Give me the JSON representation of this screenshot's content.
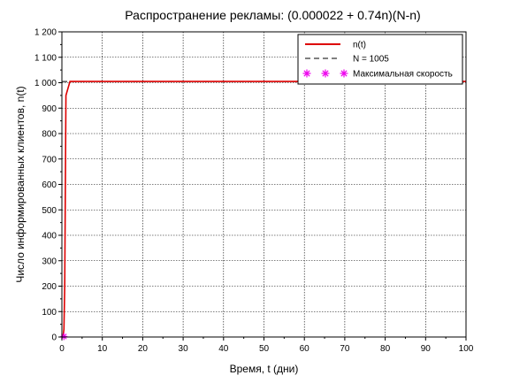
{
  "chart_data": {
    "type": "line",
    "title": "Распространение рекламы: (0.000022 + 0.74n)(N-n)",
    "xlabel": "Время, t (дни)",
    "ylabel": "Число информированных клиентов, n(t)",
    "xlim": [
      0,
      100
    ],
    "ylim": [
      0,
      1200
    ],
    "x_ticks": [
      0,
      10,
      20,
      30,
      40,
      50,
      60,
      70,
      80,
      90,
      100
    ],
    "x_tick_labels": [
      "0",
      "10",
      "20",
      "30",
      "40",
      "50",
      "60",
      "70",
      "80",
      "90",
      "100"
    ],
    "y_ticks": [
      0,
      100,
      200,
      300,
      400,
      500,
      600,
      700,
      800,
      900,
      1000,
      1100,
      1200
    ],
    "y_tick_labels": [
      "0",
      "100",
      "200",
      "300",
      "400",
      "500",
      "600",
      "700",
      "800",
      "900",
      "1 000",
      "1 100",
      "1 200"
    ],
    "grid": true,
    "legend_position": "top-right",
    "series": [
      {
        "name": "n(t)",
        "style": "solid",
        "color": "#dd0000",
        "x": [
          0,
          0.3,
          0.5,
          0.7,
          0.9,
          1.0,
          2,
          10,
          50,
          100
        ],
        "y": [
          0,
          5,
          30,
          200,
          700,
          950,
          1005,
          1005,
          1005,
          1005
        ]
      },
      {
        "name": "N = 1005",
        "style": "dashed",
        "color": "#000000",
        "x": [
          0,
          100
        ],
        "y": [
          1005,
          1005
        ]
      },
      {
        "name": "Максимальная скорость",
        "style": "marker-star",
        "color": "#ee00ee",
        "x": [
          0.5
        ],
        "y": [
          2
        ]
      }
    ]
  }
}
